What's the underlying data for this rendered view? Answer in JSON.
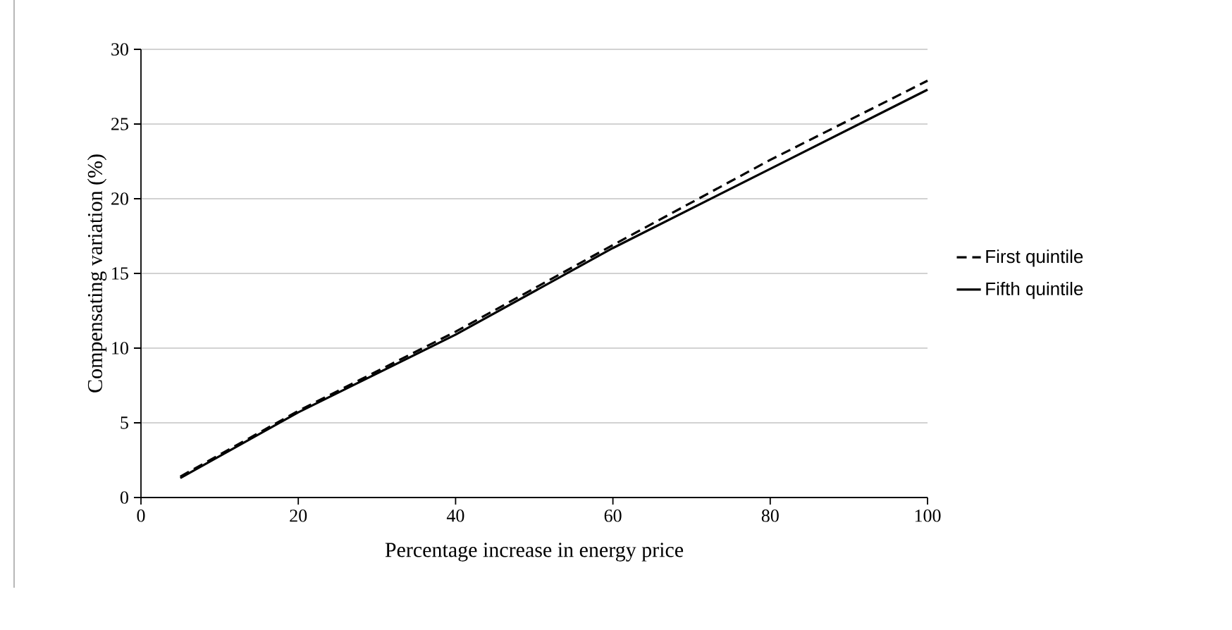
{
  "chart_data": {
    "type": "line",
    "xlabel": "Percentage increase in energy price",
    "ylabel": "Compensating variation (%)",
    "x": [
      5,
      20,
      40,
      60,
      80,
      100
    ],
    "series": [
      {
        "name": "First quintile",
        "color": "#000000",
        "line_style": "dashed",
        "values": [
          1.4,
          5.8,
          11.1,
          16.9,
          22.6,
          27.9
        ]
      },
      {
        "name": "Fifth quintile",
        "color": "#000000",
        "line_style": "solid",
        "values": [
          1.3,
          5.7,
          10.9,
          16.7,
          22.0,
          27.3
        ]
      }
    ],
    "xlim": [
      0,
      100
    ],
    "xticks": [
      0,
      20,
      40,
      60,
      80,
      100
    ],
    "ylim": [
      0,
      30
    ],
    "yticks": [
      0,
      5,
      10,
      15,
      20,
      25,
      30
    ],
    "grid": "y",
    "legend": "right",
    "marker": "none"
  }
}
